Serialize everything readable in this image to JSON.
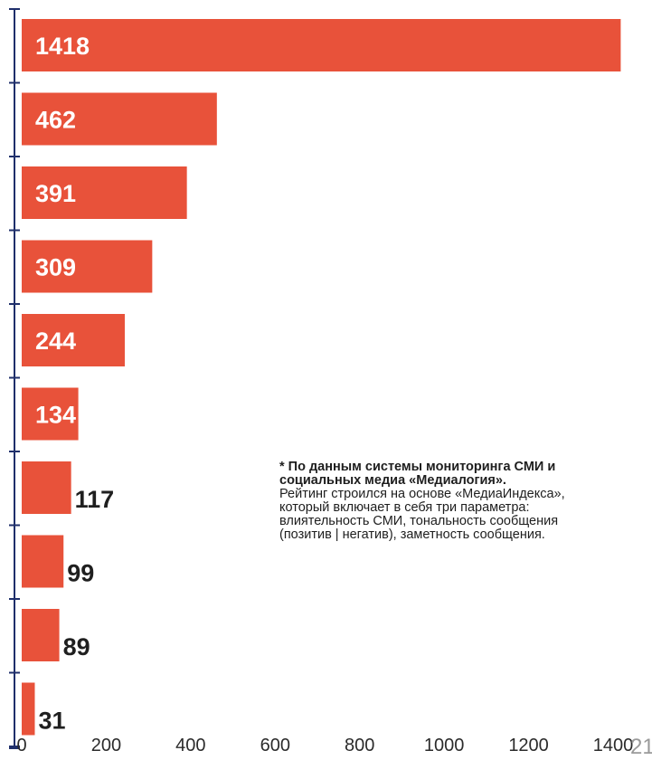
{
  "chart_data": {
    "type": "bar",
    "orientation": "horizontal",
    "values": [
      1418,
      462,
      391,
      309,
      244,
      134,
      117,
      99,
      89,
      31
    ],
    "data_labels": [
      "1418",
      "462",
      "391",
      "309",
      "244",
      "134",
      "117",
      "99",
      "89",
      "31"
    ],
    "xlim": [
      0,
      1400
    ],
    "x_ticks": [
      0,
      200,
      400,
      600,
      800,
      1000,
      1200,
      1400
    ],
    "x_tick_labels": [
      "0",
      "200",
      "400",
      "600",
      "800",
      "1000",
      "1200",
      "1400"
    ],
    "bar_color": "#E8523A",
    "axis_color": "#1F2F6B",
    "grid": false
  },
  "note": {
    "bold_lines": [
      "* По данным системы мониторинга СМИ и",
      "социальных медиа «Медиалогия»."
    ],
    "lines": [
      "Рейтинг строился на основе «МедиаИндекса»,",
      "который включает в себя три параметра:",
      "влиятельность СМИ, тональность сообщения",
      "(позитив | негатив), заметность сообщения."
    ]
  },
  "page_number": "21"
}
